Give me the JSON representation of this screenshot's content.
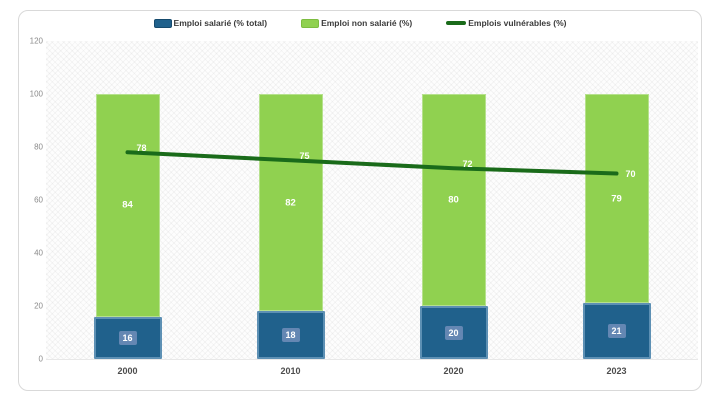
{
  "legend": {
    "items": [
      {
        "label": "Emploi salarié (% total)",
        "marker": "square",
        "color": "#20618c",
        "border": "#164a6d"
      },
      {
        "label": "Emploi non salarié (%)",
        "marker": "square",
        "color": "#90d150",
        "border": "#7dbd40"
      },
      {
        "label": "Emplois vulnérables (%)",
        "marker": "line",
        "color": "#1a6b1a",
        "border": "#1a6b1a"
      }
    ]
  },
  "chart_data": {
    "type": "bar",
    "subtype": "stacked-bars-with-line-overlay",
    "title": "",
    "xlabel": "",
    "ylabel": "",
    "categories": [
      "2000",
      "2010",
      "2020",
      "2023"
    ],
    "series": [
      {
        "name": "Emploi salarié (% total)",
        "type": "bar",
        "stack_order": 0,
        "color": "#20618c",
        "values": [
          16,
          18,
          20,
          21
        ]
      },
      {
        "name": "Emploi non salarié (%)",
        "type": "bar",
        "stack_order": 1,
        "color": "#90d150",
        "values": [
          84,
          82,
          80,
          79
        ]
      },
      {
        "name": "Emplois vulnérables (%)",
        "type": "line",
        "color": "#1a6b1a",
        "values": [
          78,
          75,
          72,
          70
        ]
      }
    ],
    "ylim": [
      0,
      120
    ],
    "yticks": [
      0,
      20,
      40,
      60,
      80,
      100,
      120
    ],
    "grid": false,
    "legend_position": "top",
    "data_labels": true
  },
  "colors": {
    "bar_blue": "#20618c",
    "bar_blue_border": "#5d90b4",
    "bar_blue_label_box": "#6487b3",
    "bar_green": "#90d150",
    "line_dark_green": "#1a6b1a",
    "card_border": "#d9d9d9",
    "ytick_text": "#8a8a8a",
    "xtick_text": "#4d4d4d",
    "label_text": "#ffffff"
  }
}
